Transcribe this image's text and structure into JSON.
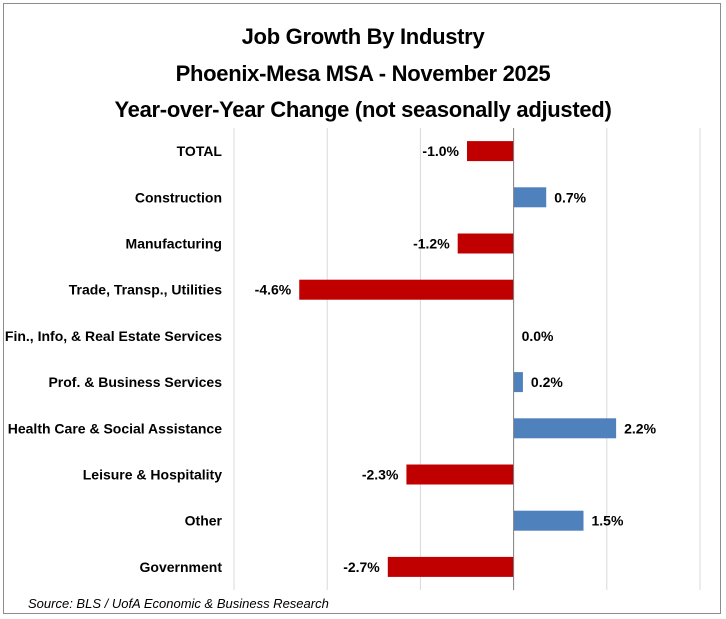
{
  "chart_data": {
    "type": "bar",
    "orientation": "horizontal",
    "title": "Job Growth By Industry",
    "subtitle": "Phoenix-Mesa MSA - November 2025",
    "subtitle2": "Year-over-Year Change (not seasonally adjusted)",
    "categories": [
      "TOTAL",
      "Construction",
      "Manufacturing",
      "Trade, Transp., Utilities",
      "Fin., Info, & Real Estate Services",
      "Prof. & Business Services",
      "Health Care & Social Assistance",
      "Leisure & Hospitality",
      "Other",
      "Government"
    ],
    "values": [
      -1.0,
      0.7,
      -1.2,
      -4.6,
      0.0,
      0.2,
      2.2,
      -2.3,
      1.5,
      -2.7
    ],
    "data_labels": [
      "-1.0%",
      "0.7%",
      "-1.2%",
      "-4.6%",
      "0.0%",
      "0.2%",
      "2.2%",
      "-2.3%",
      "1.5%",
      "-2.7%"
    ],
    "xlim": [
      -6,
      4
    ],
    "gridlines": [
      -6,
      -4,
      -2,
      0,
      2,
      4
    ],
    "grid": true,
    "colors": {
      "positive": "#4f81bd",
      "negative": "#c00000"
    },
    "source": "Source: BLS / UofA Economic & Business Research"
  }
}
